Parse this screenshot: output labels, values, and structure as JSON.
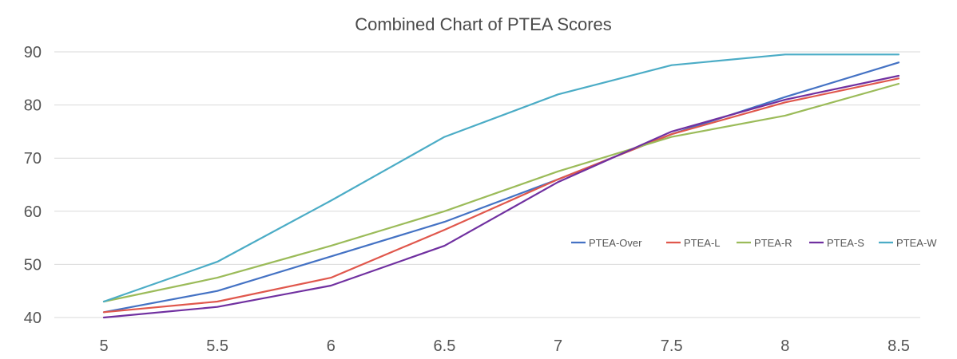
{
  "chart_data": {
    "type": "line",
    "title": "Combined Chart of PTEA Scores",
    "xlabel": "",
    "ylabel": "",
    "categories": [
      "5",
      "5.5",
      "6",
      "6.5",
      "7",
      "7.5",
      "8",
      "8.5"
    ],
    "x": [
      5,
      5.5,
      6,
      6.5,
      7,
      7.5,
      8,
      8.5
    ],
    "ylim": [
      40,
      90
    ],
    "yticks": [
      "40",
      "50",
      "60",
      "70",
      "80",
      "90"
    ],
    "grid": true,
    "legend_position": "right-middle",
    "series": [
      {
        "name": "PTEA-Over",
        "color": "#4472c4",
        "values": [
          41,
          45,
          51.5,
          58,
          66,
          74.5,
          81.5,
          88
        ]
      },
      {
        "name": "PTEA-L",
        "color": "#e0574c",
        "values": [
          41,
          43,
          47.5,
          56.5,
          66,
          74.5,
          80.5,
          85
        ]
      },
      {
        "name": "PTEA-R",
        "color": "#9bbb59",
        "values": [
          43,
          47.5,
          53.5,
          60,
          67.5,
          74,
          78,
          84
        ]
      },
      {
        "name": "PTEA-S",
        "color": "#7030a0",
        "values": [
          40,
          42,
          46,
          53.5,
          65.5,
          75,
          81,
          85.5
        ]
      },
      {
        "name": "PTEA-W",
        "color": "#4bacc6",
        "values": [
          43,
          50.5,
          62,
          74,
          82,
          87.5,
          89.5,
          89.5
        ]
      }
    ]
  }
}
